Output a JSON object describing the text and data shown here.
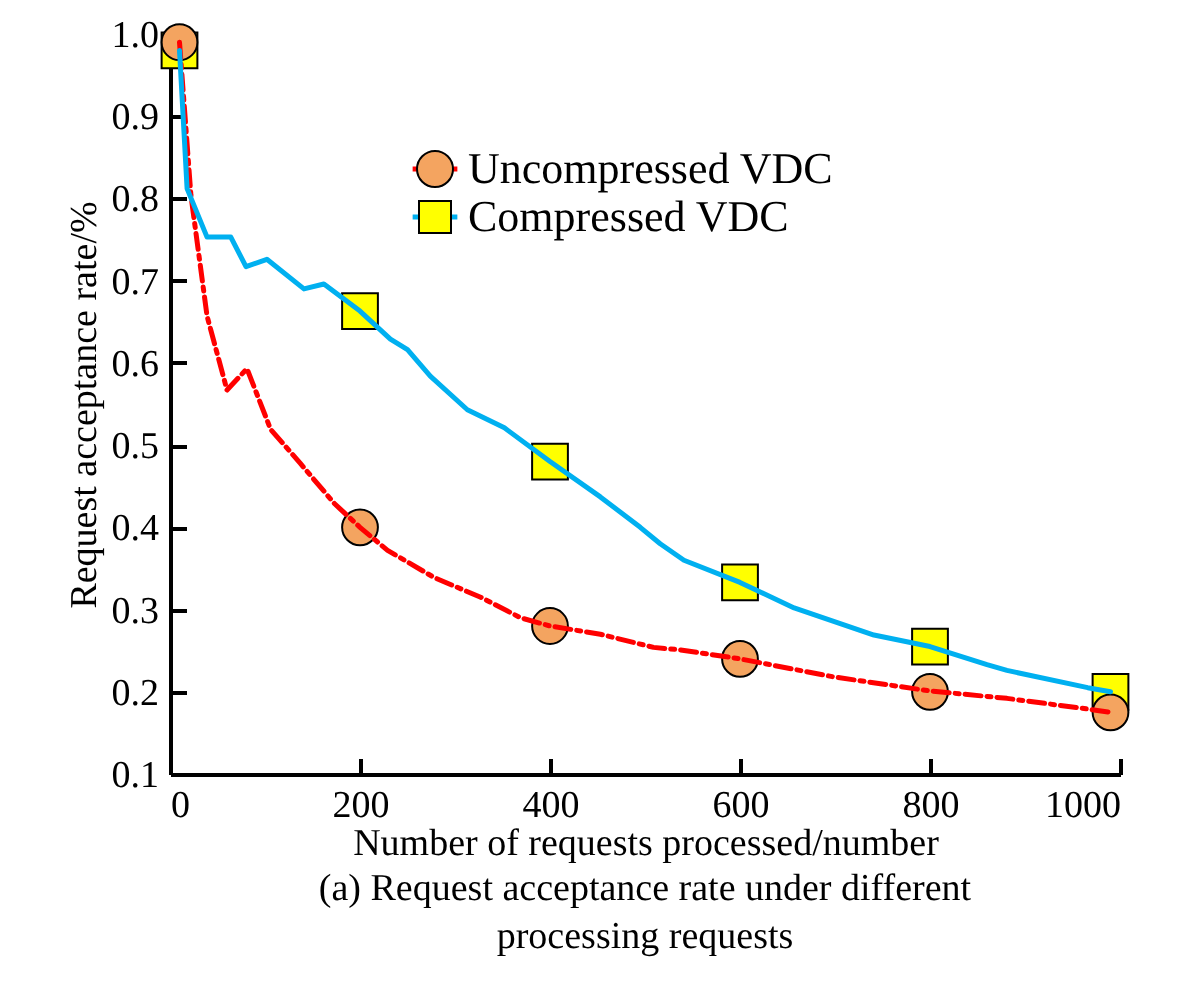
{
  "chart_data": {
    "type": "line",
    "xlabel": "Number of requests processed/number",
    "ylabel": "Request acceptance rate/%",
    "annotations": [
      "(a) Request acceptance rate under different processing requests"
    ],
    "xlim": [
      0,
      1000
    ],
    "xticks": [
      0,
      200,
      400,
      600,
      800,
      1000
    ],
    "ylim": [
      0.1,
      1.0
    ],
    "yticks": [
      0.1,
      0.2,
      0.3,
      0.4,
      0.5,
      0.6,
      0.7,
      0.8,
      0.9,
      {
        "value": 1.0,
        "label": "1.0"
      }
    ],
    "grid": false,
    "legend": "top",
    "series": [
      {
        "name": "Uncompressed VDC",
        "color": "#ff0000",
        "line_style": "dashed",
        "marker": "none",
        "x": [
          10,
          22,
          39,
          60,
          81,
          106,
          137,
          173,
          200,
          229,
          278,
          327,
          369,
          400,
          453,
          509,
          537,
          600,
          699,
          800,
          881,
          966,
          990
        ],
        "values": [
          0.99,
          0.804,
          0.657,
          0.567,
          0.593,
          0.519,
          0.478,
          0.429,
          0.4,
          0.372,
          0.339,
          0.315,
          0.29,
          0.28,
          0.27,
          0.254,
          0.251,
          0.24,
          0.218,
          0.201,
          0.192,
          0.179,
          0.175
        ]
      },
      {
        "name": "Compressed VDC",
        "color": "#00b0f0",
        "line_style": "solid",
        "marker": "none",
        "x": [
          10,
          18,
          39,
          64,
          80,
          102,
          141,
          162,
          200,
          232,
          250,
          274,
          313,
          352,
          400,
          453,
          495,
          516,
          541,
          600,
          657,
          741,
          800,
          860,
          881,
          966,
          990
        ],
        "values": [
          0.98,
          0.812,
          0.753,
          0.753,
          0.717,
          0.726,
          0.69,
          0.696,
          0.663,
          0.629,
          0.616,
          0.584,
          0.543,
          0.521,
          0.48,
          0.437,
          0.4,
          0.38,
          0.36,
          0.333,
          0.302,
          0.269,
          0.255,
          0.233,
          0.226,
          0.205,
          0.2
        ]
      },
      {
        "type": "scatter",
        "color": "#f4a460",
        "marker": "circle",
        "x": [
          10,
          200,
          400,
          600,
          800,
          990
        ],
        "values": [
          0.99,
          0.4,
          0.28,
          0.24,
          0.2,
          0.175
        ]
      },
      {
        "type": "scatter",
        "color": "#ffff00",
        "marker": "square",
        "x": [
          10,
          200,
          400,
          600,
          800,
          990
        ],
        "values": [
          0.98,
          0.663,
          0.48,
          0.333,
          0.255,
          0.2
        ]
      }
    ]
  }
}
